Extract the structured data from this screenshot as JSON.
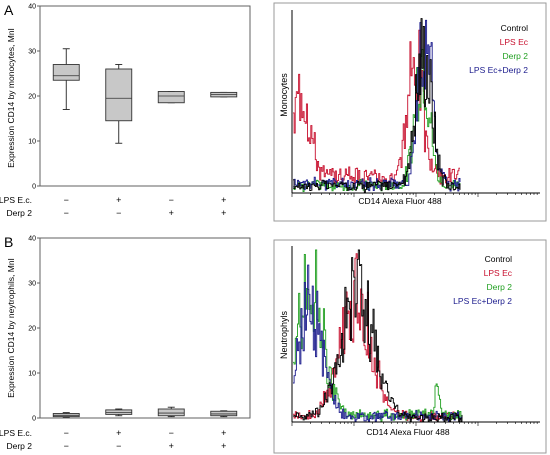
{
  "panels": [
    {
      "letter": "A",
      "boxplot": {
        "ylabel": "Expression CD14 by monocytes, MnI",
        "ylim": [
          0,
          40
        ],
        "yticks": [
          0,
          10,
          20,
          30,
          40
        ],
        "row_labels": [
          "LPS E.c.",
          "Derp 2"
        ],
        "groups": [
          {
            "signs": [
              "−",
              "−"
            ],
            "min": 17,
            "q1": 23.5,
            "median": 24.5,
            "q3": 27,
            "max": 30.5
          },
          {
            "signs": [
              "+",
              "−"
            ],
            "min": 9.5,
            "q1": 14.5,
            "median": 19.5,
            "q3": 26,
            "max": 27
          },
          {
            "signs": [
              "−",
              "+"
            ],
            "min": 18.5,
            "q1": 18.5,
            "median": 20,
            "q3": 21,
            "max": 21
          },
          {
            "signs": [
              "+",
              "+"
            ],
            "min": 19.8,
            "q1": 19.8,
            "median": 20.3,
            "q3": 20.8,
            "max": 20.8
          }
        ]
      },
      "histogram": {
        "ylabel": "Monocytes",
        "xlabel": "CD14 Alexa Fluor 488",
        "legend": [
          {
            "name": "Control",
            "color": "#000000"
          },
          {
            "name": "LPS Ec",
            "color": "#c8102e"
          },
          {
            "name": "Derp 2",
            "color": "#22a022"
          },
          {
            "name": "LPS Ec+Derp 2",
            "color": "#1a1a8c"
          }
        ]
      }
    },
    {
      "letter": "B",
      "boxplot": {
        "ylabel": "Expression CD14 by neytrophils, MnI",
        "ylim": [
          0,
          40
        ],
        "yticks": [
          0,
          10,
          20,
          30,
          40
        ],
        "row_labels": [
          "LPS E.c.",
          "Derp 2"
        ],
        "groups": [
          {
            "signs": [
              "−",
              "−"
            ],
            "min": 0.2,
            "q1": 0.3,
            "median": 0.6,
            "q3": 1.0,
            "max": 1.2
          },
          {
            "signs": [
              "+",
              "−"
            ],
            "min": 0.5,
            "q1": 0.8,
            "median": 1.2,
            "q3": 1.8,
            "max": 2.0
          },
          {
            "signs": [
              "−",
              "+"
            ],
            "min": 0.3,
            "q1": 0.5,
            "median": 1.1,
            "q3": 2.0,
            "max": 2.4
          },
          {
            "signs": [
              "+",
              "+"
            ],
            "min": 0.3,
            "q1": 0.5,
            "median": 0.9,
            "q3": 1.5,
            "max": 1.6
          }
        ]
      },
      "histogram": {
        "ylabel": "Neutrophyls",
        "xlabel": "CD14 Alexa Fluor 488",
        "legend": [
          {
            "name": "Control",
            "color": "#000000"
          },
          {
            "name": "LPS Ec",
            "color": "#c8102e"
          },
          {
            "name": "Derp 2",
            "color": "#22a022"
          },
          {
            "name": "LPS Ec+Derp 2",
            "color": "#1a1a8c"
          }
        ]
      }
    }
  ],
  "chart_data": [
    {
      "type": "box",
      "panel": "A",
      "ylabel": "Expression CD14 by monocytes, MnI",
      "ylim": [
        0,
        40
      ],
      "categories": [
        "LPS E.c. − / Derp 2 −",
        "LPS E.c. + / Derp 2 −",
        "LPS E.c. − / Derp 2 +",
        "LPS E.c. + / Derp 2 +"
      ],
      "values": [
        {
          "min": 17,
          "q1": 23.5,
          "median": 24.5,
          "q3": 27,
          "max": 30.5
        },
        {
          "min": 9.5,
          "q1": 14.5,
          "median": 19.5,
          "q3": 26,
          "max": 27
        },
        {
          "min": 18.5,
          "q1": 18.5,
          "median": 20,
          "q3": 21,
          "max": 21
        },
        {
          "min": 19.8,
          "q1": 19.8,
          "median": 20.3,
          "q3": 20.8,
          "max": 20.8
        }
      ]
    },
    {
      "type": "line",
      "panel": "A",
      "xlabel": "CD14 Alexa Fluor 488",
      "ylabel": "Monocytes",
      "series": [
        {
          "name": "Control",
          "color": "#000000",
          "peaks": [
            {
              "at": 0.78,
              "height": 0.82,
              "width": 0.07
            }
          ],
          "base": 0.04
        },
        {
          "name": "LPS Ec",
          "color": "#c8102e",
          "peaks": [
            {
              "at": 0.05,
              "height": 0.55,
              "width": 0.07
            },
            {
              "at": 0.73,
              "height": 0.75,
              "width": 0.06
            }
          ],
          "base": 0.1
        },
        {
          "name": "Derp 2",
          "color": "#22a022",
          "peaks": [
            {
              "at": 0.77,
              "height": 0.8,
              "width": 0.06
            }
          ],
          "base": 0.04
        },
        {
          "name": "LPS Ec+Derp 2",
          "color": "#1a1a8c",
          "peaks": [
            {
              "at": 0.79,
              "height": 0.9,
              "width": 0.06
            }
          ],
          "base": 0.05
        }
      ]
    },
    {
      "type": "box",
      "panel": "B",
      "ylabel": "Expression CD14 by neytrophils, MnI",
      "ylim": [
        0,
        40
      ],
      "categories": [
        "LPS E.c. − / Derp 2 −",
        "LPS E.c. + / Derp 2 −",
        "LPS E.c. − / Derp 2 +",
        "LPS E.c. + / Derp 2 +"
      ],
      "values": [
        {
          "min": 0.2,
          "q1": 0.3,
          "median": 0.6,
          "q3": 1.0,
          "max": 1.2
        },
        {
          "min": 0.5,
          "q1": 0.8,
          "median": 1.2,
          "q3": 1.8,
          "max": 2.0
        },
        {
          "min": 0.3,
          "q1": 0.5,
          "median": 1.1,
          "q3": 2.0,
          "max": 2.4
        },
        {
          "min": 0.3,
          "q1": 0.5,
          "median": 0.9,
          "q3": 1.5,
          "max": 1.6
        }
      ]
    },
    {
      "type": "line",
      "panel": "B",
      "xlabel": "CD14 Alexa Fluor 488",
      "ylabel": "Neutrophyls",
      "series": [
        {
          "name": "Control",
          "color": "#000000",
          "peaks": [
            {
              "at": 0.38,
              "height": 0.82,
              "width": 0.14
            }
          ],
          "base": 0.02
        },
        {
          "name": "LPS Ec",
          "color": "#c8102e",
          "peaks": [
            {
              "at": 0.37,
              "height": 0.78,
              "width": 0.13
            }
          ],
          "base": 0.03
        },
        {
          "name": "Derp 2",
          "color": "#22a022",
          "peaks": [
            {
              "at": 0.1,
              "height": 0.85,
              "width": 0.11
            },
            {
              "at": 0.85,
              "height": 0.16,
              "width": 0.02
            }
          ],
          "base": 0.04
        },
        {
          "name": "LPS Ec+Derp 2",
          "color": "#1a1a8c",
          "peaks": [
            {
              "at": 0.1,
              "height": 0.7,
              "width": 0.1
            }
          ],
          "base": 0.03
        }
      ]
    }
  ]
}
